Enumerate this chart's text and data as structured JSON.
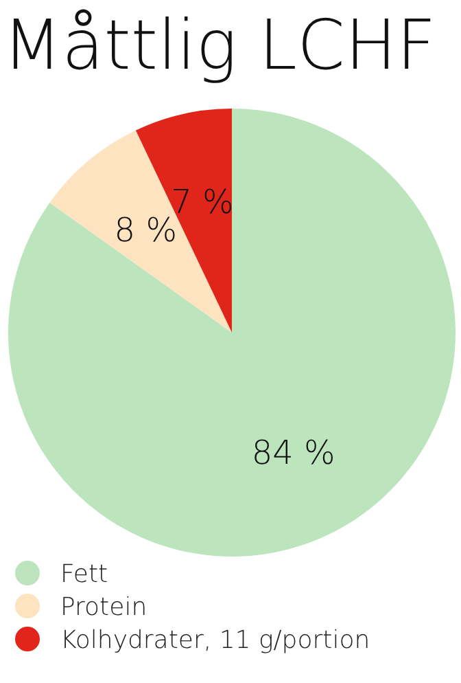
{
  "chart_data": {
    "type": "pie",
    "title": "Måttlig LCHF",
    "categories": [
      "Fett",
      "Protein",
      "Kolhydrater, 11 g/portion"
    ],
    "values": [
      84,
      8,
      7
    ],
    "colors": [
      "#bde5bd",
      "#fde3c0",
      "#e0261b"
    ],
    "value_labels": [
      "84 %",
      "8 %",
      "7 %"
    ],
    "legend": "bottom left"
  }
}
